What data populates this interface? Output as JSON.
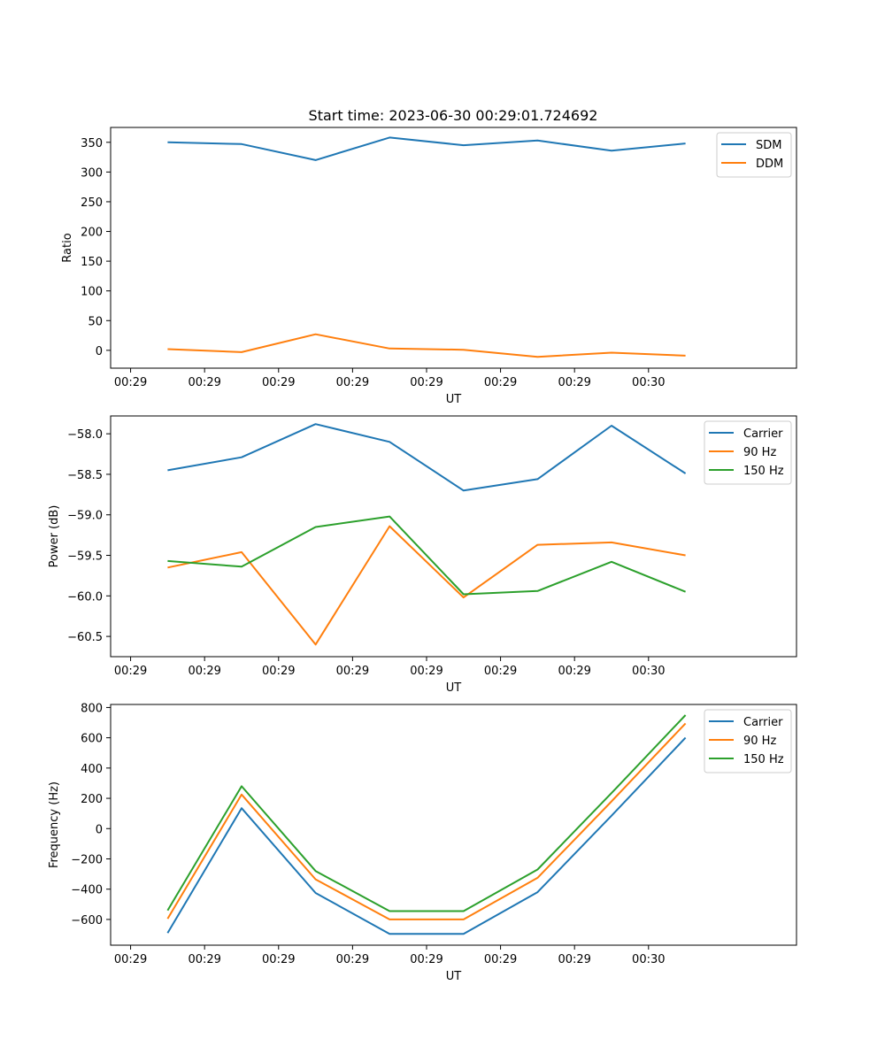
{
  "title": "Start time: 2023-06-30 00:29:01.724692",
  "colors": {
    "series1": "#1f77b4",
    "series2": "#ff7f0e",
    "series3": "#2ca02c"
  },
  "chart_data": [
    {
      "type": "line",
      "title": "Start time: 2023-06-30 00:29:01.724692",
      "xlabel": "UT",
      "ylabel": "Ratio",
      "x_tick_labels": [
        "00:29",
        "00:29",
        "00:29",
        "00:29",
        "00:29",
        "00:29",
        "00:29"
      ],
      "x_tick_labels_extra": [
        "00:30"
      ],
      "x": [
        1,
        2,
        3,
        4,
        5,
        6,
        7,
        8
      ],
      "xlim": [
        0.23,
        9.5
      ],
      "ylim": [
        -30,
        375
      ],
      "yticks": [
        0,
        50,
        100,
        150,
        200,
        250,
        300,
        350
      ],
      "grid": false,
      "legend_position": "top-right",
      "series": [
        {
          "name": "SDM",
          "values": [
            350,
            347,
            320,
            358,
            345,
            353,
            336,
            348
          ]
        },
        {
          "name": "DDM",
          "values": [
            2,
            -3,
            27,
            3,
            1,
            -11,
            -4,
            -9
          ]
        }
      ]
    },
    {
      "type": "line",
      "xlabel": "UT",
      "ylabel": "Power (dB)",
      "x_tick_labels": [
        "00:29",
        "00:29",
        "00:29",
        "00:29",
        "00:29",
        "00:29",
        "00:29"
      ],
      "x_tick_labels_extra": [
        "00:30"
      ],
      "x": [
        1,
        2,
        3,
        4,
        5,
        6,
        7,
        8
      ],
      "xlim": [
        0.23,
        9.5
      ],
      "ylim": [
        -60.75,
        -57.78
      ],
      "yticks": [
        -60.5,
        -60.0,
        -59.5,
        -59.0,
        -58.5,
        -58.0
      ],
      "grid": false,
      "legend_position": "top-right",
      "series": [
        {
          "name": "Carrier",
          "values": [
            -58.45,
            -58.29,
            -57.88,
            -58.1,
            -58.7,
            -58.56,
            -57.9,
            -58.49
          ]
        },
        {
          "name": "90 Hz",
          "values": [
            -59.65,
            -59.46,
            -60.6,
            -59.14,
            -60.02,
            -59.37,
            -59.34,
            -59.5
          ]
        },
        {
          "name": "150 Hz",
          "values": [
            -59.57,
            -59.64,
            -59.15,
            -59.02,
            -59.98,
            -59.94,
            -59.58,
            -59.95
          ]
        }
      ]
    },
    {
      "type": "line",
      "xlabel": "UT",
      "ylabel": "Frequency (Hz)",
      "x_tick_labels": [
        "00:29",
        "00:29",
        "00:29",
        "00:29",
        "00:29",
        "00:29",
        "00:29"
      ],
      "x_tick_labels_extra": [
        "00:30"
      ],
      "x": [
        1,
        2,
        3,
        4,
        5,
        6,
        7,
        8
      ],
      "xlim": [
        0.23,
        9.5
      ],
      "ylim": [
        -770,
        820
      ],
      "yticks": [
        -600,
        -400,
        -200,
        0,
        200,
        400,
        600,
        800
      ],
      "grid": false,
      "legend_position": "top-right",
      "series": [
        {
          "name": "Carrier",
          "values": [
            -690,
            135,
            -425,
            -695,
            -695,
            -420,
            85,
            600
          ]
        },
        {
          "name": "90 Hz",
          "values": [
            -595,
            225,
            -335,
            -600,
            -600,
            -325,
            180,
            695
          ]
        },
        {
          "name": "150 Hz",
          "values": [
            -540,
            280,
            -280,
            -545,
            -545,
            -270,
            235,
            750
          ]
        }
      ]
    }
  ]
}
